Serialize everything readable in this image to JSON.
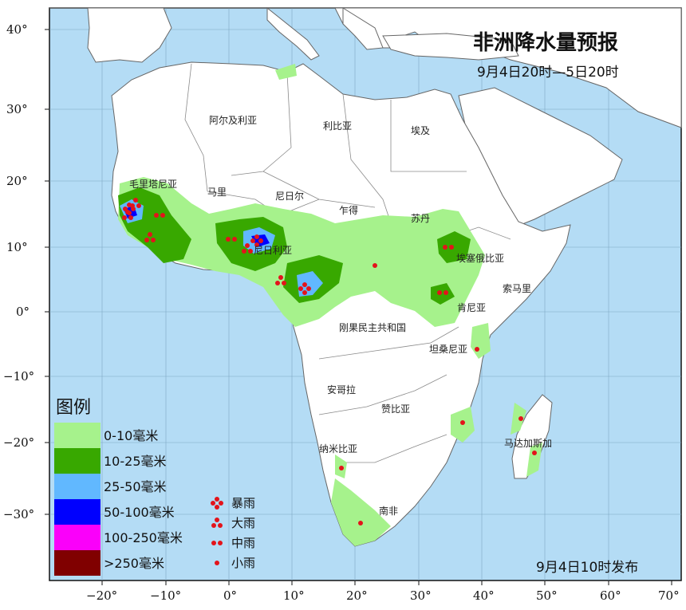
{
  "map": {
    "title": "非洲降水量预报",
    "subtitle": "9月4日20时—5日20时",
    "issued": "9月4日10时发布",
    "lat_ticks": [
      "40°",
      "30°",
      "20°",
      "10°",
      "0°",
      "−10°",
      "−20°",
      "−30°"
    ],
    "lon_ticks": [
      "−20°",
      "−10°",
      "0°",
      "10°",
      "20°",
      "30°",
      "40°",
      "50°",
      "60°",
      "70°"
    ],
    "countries": {
      "algeria": "阿尔及利亚",
      "libya": "利比亚",
      "egypt": "埃及",
      "mauritania": "毛里塔尼亚",
      "mali": "马里",
      "niger": "尼日尔",
      "chad": "乍得",
      "sudan": "苏丹",
      "nigeria": "尼日利亚",
      "ethiopia": "埃塞俄比亚",
      "somalia": "索马里",
      "kenya": "肯尼亚",
      "drc": "刚果民主共和国",
      "tanzania": "坦桑尼亚",
      "angola": "安哥拉",
      "zambia": "赞比亚",
      "namibia": "纳米比亚",
      "south_africa": "南非",
      "madagascar": "马达加斯加"
    },
    "legend": {
      "title": "图例",
      "bins": [
        {
          "label": "0-10毫米",
          "color": "#a6f28c"
        },
        {
          "label": "10-25毫米",
          "color": "#38a800"
        },
        {
          "label": "25-50毫米",
          "color": "#61b8ff"
        },
        {
          "label": "50-100毫米",
          "color": "#0000fe"
        },
        {
          "label": "100-250毫米",
          "color": "#fa00fa"
        },
        {
          "label": ">250毫米",
          "color": "#800000"
        }
      ],
      "rain_types": [
        {
          "label": "暴雨",
          "dots": 4
        },
        {
          "label": "大雨",
          "dots": 3
        },
        {
          "label": "中雨",
          "dots": 2
        },
        {
          "label": "小雨",
          "dots": 1
        }
      ]
    },
    "colors": {
      "ocean": "#b4dcf5",
      "land": "#ffffff",
      "border": "#7a7a7a",
      "dot": "#e3141b"
    }
  }
}
